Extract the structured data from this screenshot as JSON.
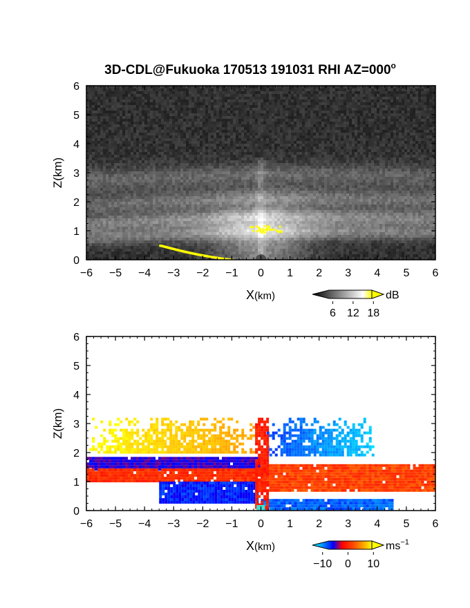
{
  "title": "3D-CDL@Fukuoka 170513 191031 RHI AZ=000",
  "title_degree": "o",
  "chart_data": [
    {
      "type": "heatmap",
      "quantity": "backscatter intensity",
      "xlabel": "X",
      "xlabel_unit": "(km)",
      "ylabel": "Z(km)",
      "xlim": [
        -6,
        6
      ],
      "ylim": [
        0,
        6
      ],
      "x_ticks": [
        "−6",
        "−5",
        "−4",
        "−3",
        "−2",
        "−1",
        "0",
        "1",
        "2",
        "3",
        "4",
        "5",
        "6"
      ],
      "y_ticks": [
        "0",
        "1",
        "2",
        "3",
        "4",
        "5",
        "6"
      ],
      "colormap": "grayscale",
      "colorbar": {
        "unit": "dB",
        "ticks": [
          "6",
          "12",
          "18"
        ],
        "range": [
          0,
          21
        ],
        "max_color": "#ffff00"
      },
      "bright_layers_km": [
        {
          "z": 1.5,
          "relative": 0.9
        },
        {
          "z": 1.0,
          "relative": 0.85
        },
        {
          "z": 2.1,
          "relative": 0.55
        },
        {
          "z": 3.0,
          "relative": 0.3
        }
      ],
      "saturated_regions": [
        {
          "label": "low-level streak",
          "x": [
            -3.5,
            -1.0
          ],
          "z": [
            0.5,
            0.0
          ]
        },
        {
          "label": "patch near origin",
          "x": [
            -0.5,
            0.7
          ],
          "z": [
            0.95,
            1.2
          ]
        }
      ]
    },
    {
      "type": "heatmap",
      "quantity": "Doppler velocity",
      "xlabel": "X",
      "xlabel_unit": "(km)",
      "ylabel": "Z(km)",
      "xlim": [
        -6,
        6
      ],
      "ylim": [
        0,
        6
      ],
      "x_ticks": [
        "−6",
        "−5",
        "−4",
        "−3",
        "−2",
        "−1",
        "0",
        "1",
        "2",
        "3",
        "4",
        "5",
        "6"
      ],
      "y_ticks": [
        "0",
        "1",
        "2",
        "3",
        "4",
        "5",
        "6"
      ],
      "colormap": "cyan-blue-red-orange-yellow",
      "colorbar": {
        "unit": "ms",
        "unit_exp": "−1",
        "ticks": [
          "−10",
          "0",
          "10"
        ],
        "range": [
          -14,
          14
        ]
      },
      "regions_velocity_ms": [
        {
          "x": [
            -5.9,
            -0.1
          ],
          "z": [
            2.0,
            3.2
          ],
          "v": 8
        },
        {
          "x": [
            0.1,
            3.9
          ],
          "z": [
            1.9,
            3.2
          ],
          "v": -7
        },
        {
          "x": [
            -6.0,
            -0.1
          ],
          "z": [
            1.45,
            1.85
          ],
          "v": -4
        },
        {
          "x": [
            -6.0,
            0.0
          ],
          "z": [
            1.0,
            1.45
          ],
          "v": 3
        },
        {
          "x": [
            -3.5,
            -0.1
          ],
          "z": [
            0.3,
            1.0
          ],
          "v": -6
        },
        {
          "x": [
            0.0,
            6.0
          ],
          "z": [
            0.7,
            1.6
          ],
          "v": 4
        },
        {
          "x": [
            0.0,
            4.5
          ],
          "z": [
            0.0,
            0.4
          ],
          "v": -8
        }
      ]
    }
  ]
}
